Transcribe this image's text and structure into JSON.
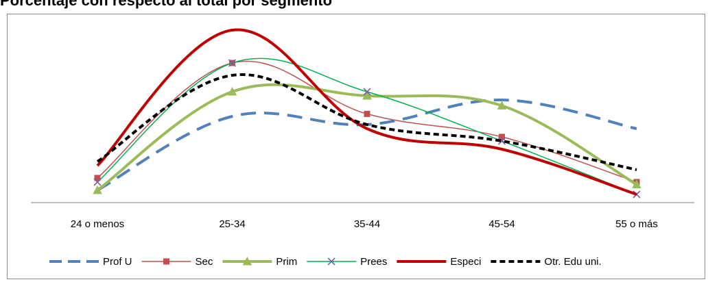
{
  "chart_data": {
    "type": "line",
    "title": "Porcentaje con respecto al total por segmento",
    "categories": [
      "24 o menos",
      "25-34",
      "35-44",
      "45-54",
      "55 o más"
    ],
    "series": [
      {
        "name": "Prof U",
        "values": [
          1.5,
          10.5,
          9.5,
          12.5,
          9.0
        ],
        "color": "#4f81bd",
        "style": "dashed-thick",
        "marker": "none"
      },
      {
        "name": "Sec",
        "values": [
          3.0,
          17.0,
          10.8,
          8.0,
          2.5
        ],
        "color": "#c0504d",
        "style": "solid-thin",
        "marker": "square"
      },
      {
        "name": "Prim",
        "values": [
          1.5,
          13.5,
          13.0,
          11.8,
          2.2
        ],
        "color": "#9bbb59",
        "style": "solid-thick",
        "marker": "triangle"
      },
      {
        "name": "Prees",
        "values": [
          2.5,
          17.0,
          13.5,
          7.5,
          1.0
        ],
        "color": "#00b050",
        "style": "solid-thin",
        "marker": "x"
      },
      {
        "name": "Especi",
        "values": [
          4.5,
          21.0,
          9.0,
          6.5,
          1.0
        ],
        "color": "#c00000",
        "style": "solid-thick",
        "marker": "none"
      },
      {
        "name": "Otr. Edu uni.",
        "values": [
          5.0,
          15.5,
          9.5,
          7.5,
          4.0
        ],
        "color": "#000000",
        "style": "dotted-thick",
        "marker": "none"
      }
    ],
    "ylim": [
      0,
      24
    ],
    "grid": false,
    "legend": "bottom"
  }
}
